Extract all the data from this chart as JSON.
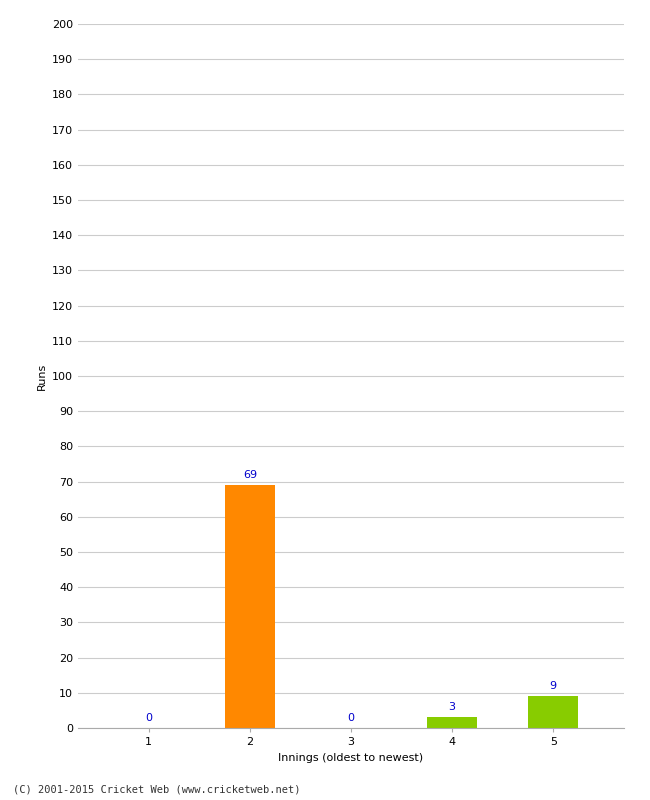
{
  "xlabel": "Innings (oldest to newest)",
  "ylabel": "Runs",
  "categories": [
    1,
    2,
    3,
    4,
    5
  ],
  "values": [
    0,
    69,
    0,
    3,
    9
  ],
  "bar_colors": [
    "#ff8800",
    "#ff8800",
    "#ff8800",
    "#88cc00",
    "#88cc00"
  ],
  "value_labels": [
    "0",
    "69",
    "0",
    "3",
    "9"
  ],
  "value_label_color": "#0000cc",
  "ylim": [
    0,
    200
  ],
  "yticks": [
    0,
    10,
    20,
    30,
    40,
    50,
    60,
    70,
    80,
    90,
    100,
    110,
    120,
    130,
    140,
    150,
    160,
    170,
    180,
    190,
    200
  ],
  "grid_color": "#cccccc",
  "background_color": "#ffffff",
  "footer": "(C) 2001-2015 Cricket Web (www.cricketweb.net)",
  "bar_width": 0.5
}
